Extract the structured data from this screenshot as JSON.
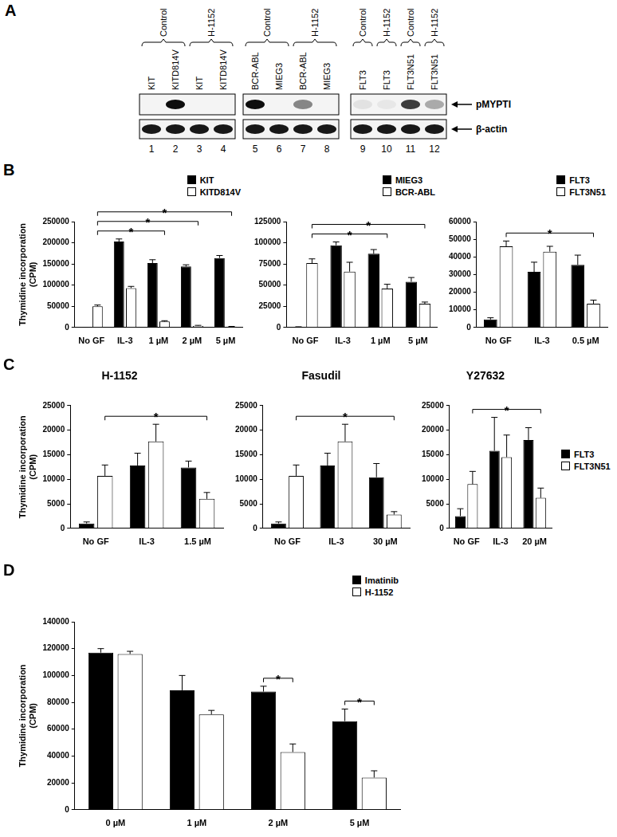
{
  "blot": {
    "panel": "A",
    "groups": [
      {
        "label": "Control",
        "lanes": [
          1,
          2
        ]
      },
      {
        "label": "H-1152",
        "lanes": [
          3,
          4
        ]
      },
      {
        "label": "Control",
        "lanes": [
          5,
          6
        ]
      },
      {
        "label": "H-1152",
        "lanes": [
          7,
          8
        ]
      },
      {
        "label": "Control",
        "lanes": [
          9
        ]
      },
      {
        "label": "H-1152",
        "lanes": [
          10
        ]
      },
      {
        "label": "Control",
        "lanes": [
          11
        ]
      },
      {
        "label": "H-1152",
        "lanes": [
          12
        ]
      }
    ],
    "lanes": [
      {
        "number": 1,
        "label": "KIT"
      },
      {
        "number": 2,
        "label": "KITD814V"
      },
      {
        "number": 3,
        "label": "KIT"
      },
      {
        "number": 4,
        "label": "KITD814V"
      },
      {
        "number": 5,
        "label": "BCR-ABL"
      },
      {
        "number": 6,
        "label": "MIEG3"
      },
      {
        "number": 7,
        "label": "BCR-ABL"
      },
      {
        "number": 8,
        "label": "MIEG3"
      },
      {
        "number": 9,
        "label": "FLT3"
      },
      {
        "number": 10,
        "label": "FLT3"
      },
      {
        "number": 11,
        "label": "FLT3N51"
      },
      {
        "number": 12,
        "label": "FLT3N51"
      }
    ],
    "boxes": [
      [
        1,
        4
      ],
      [
        5,
        8
      ],
      [
        9,
        12
      ]
    ],
    "rows": [
      {
        "label": "pMYPTI",
        "intensity": [
          0,
          0.95,
          0,
          0,
          0.95,
          0,
          0.45,
          0,
          0.07,
          0.05,
          0.75,
          0.3
        ]
      },
      {
        "label": "β-actin",
        "intensity": [
          0.9,
          0.9,
          0.9,
          0.9,
          0.9,
          0.9,
          0.9,
          0.9,
          0.9,
          0.9,
          0.9,
          0.9
        ]
      }
    ]
  },
  "chart_data": [
    {
      "panel": "B",
      "type": "bar",
      "y_label": "Thymidine incorporation (CPM)",
      "categories": [
        "No GF",
        "IL-3",
        "1 µM",
        "2 µM",
        "5 µM"
      ],
      "series": [
        {
          "name": "KIT",
          "color": "#000000",
          "values": [
            500,
            203000,
            152000,
            144000,
            164000
          ],
          "errors": [
            0,
            6000,
            8000,
            4000,
            6000
          ]
        },
        {
          "name": "KITD814V",
          "color": "#ffffff",
          "values": [
            50000,
            93000,
            14000,
            4000,
            2000
          ],
          "errors": [
            3000,
            4000,
            2000,
            1000,
            500
          ]
        }
      ],
      "ylim": [
        0,
        250000
      ],
      "yticks": [
        0,
        50000,
        100000,
        150000,
        200000,
        250000
      ],
      "grid": false,
      "legend": "top-right",
      "significance": [
        {
          "from": {
            "category": "No GF",
            "series": "KITD814V"
          },
          "to": {
            "category": "1 µM",
            "series": "KITD814V"
          },
          "label": "*"
        },
        {
          "from": {
            "category": "No GF",
            "series": "KITD814V"
          },
          "to": {
            "category": "2 µM",
            "series": "KITD814V"
          },
          "label": "*"
        },
        {
          "from": {
            "category": "No GF",
            "series": "KITD814V"
          },
          "to": {
            "category": "5 µM",
            "series": "KITD814V"
          },
          "label": "*"
        }
      ]
    },
    {
      "type": "bar",
      "categories": [
        "No GF",
        "IL-3",
        "1 µM",
        "5 µM"
      ],
      "series": [
        {
          "name": "MIEG3",
          "color": "#000000",
          "values": [
            500,
            97000,
            87000,
            54000
          ],
          "errors": [
            300,
            4000,
            5000,
            5000
          ]
        },
        {
          "name": "BCR-ABL",
          "color": "#ffffff",
          "values": [
            76000,
            66000,
            46000,
            28000
          ],
          "errors": [
            5000,
            11000,
            5000,
            2000
          ]
        }
      ],
      "ylim": [
        0,
        125000
      ],
      "yticks": [
        0,
        25000,
        50000,
        75000,
        100000,
        125000
      ],
      "grid": false,
      "legend": "top-right",
      "significance": [
        {
          "from": {
            "category": "No GF",
            "series": "BCR-ABL"
          },
          "to": {
            "category": "1 µM",
            "series": "BCR-ABL"
          },
          "label": "*"
        },
        {
          "from": {
            "category": "No GF",
            "series": "BCR-ABL"
          },
          "to": {
            "category": "5 µM",
            "series": "BCR-ABL"
          },
          "label": "*"
        }
      ]
    },
    {
      "type": "bar",
      "categories": [
        "No GF",
        "IL-3",
        "0.5 µM"
      ],
      "series": [
        {
          "name": "FLT3",
          "color": "#000000",
          "values": [
            4500,
            31500,
            35500
          ],
          "errors": [
            1000,
            5500,
            5500
          ]
        },
        {
          "name": "FLT3N51",
          "color": "#ffffff",
          "values": [
            46000,
            43000,
            13500
          ],
          "errors": [
            3000,
            3000,
            2000
          ]
        }
      ],
      "ylim": [
        0,
        60000
      ],
      "yticks": [
        0,
        10000,
        20000,
        30000,
        40000,
        50000,
        60000
      ],
      "grid": false,
      "legend": "top-right",
      "significance": [
        {
          "from": {
            "category": "No GF",
            "series": "FLT3N51"
          },
          "to": {
            "category": "0.5 µM",
            "series": "FLT3N51"
          },
          "label": "*"
        }
      ]
    },
    {
      "panel": "C",
      "type": "bar",
      "title": "H-1152",
      "y_label": "Thymidine incorporation (CPM)",
      "categories": [
        "No GF",
        "IL-3",
        "1.5 µM"
      ],
      "series": [
        {
          "name": "FLT3",
          "color": "#000000",
          "values": [
            1000,
            12800,
            12400
          ],
          "errors": [
            300,
            2500,
            1300
          ]
        },
        {
          "name": "FLT3N51",
          "color": "#ffffff",
          "values": [
            10700,
            17700,
            6000
          ],
          "errors": [
            2200,
            3500,
            1300
          ]
        }
      ],
      "ylim": [
        0,
        25000
      ],
      "yticks": [
        0,
        5000,
        10000,
        15000,
        20000,
        25000
      ],
      "grid": false,
      "significance": [
        {
          "from": {
            "category": "No GF",
            "series": "FLT3N51"
          },
          "to": {
            "category": "1.5 µM",
            "series": "FLT3N51"
          },
          "label": "*"
        }
      ]
    },
    {
      "type": "bar",
      "title": "Fasudil",
      "categories": [
        "No GF",
        "IL-3",
        "30 µM"
      ],
      "series": [
        {
          "name": "FLT3",
          "color": "#000000",
          "values": [
            1000,
            12800,
            10400
          ],
          "errors": [
            300,
            2500,
            2800
          ]
        },
        {
          "name": "FLT3N51",
          "color": "#ffffff",
          "values": [
            10700,
            17700,
            2800
          ],
          "errors": [
            2200,
            3500,
            600
          ]
        }
      ],
      "ylim": [
        0,
        25000
      ],
      "yticks": [
        0,
        5000,
        10000,
        15000,
        20000,
        25000
      ],
      "grid": false,
      "significance": [
        {
          "from": {
            "category": "No GF",
            "series": "FLT3N51"
          },
          "to": {
            "category": "30 µM",
            "series": "FLT3N51"
          },
          "label": "*"
        }
      ]
    },
    {
      "type": "bar",
      "title": "Y27632",
      "categories": [
        "No GF",
        "IL-3",
        "20 µM"
      ],
      "series": [
        {
          "name": "FLT3",
          "color": "#000000",
          "values": [
            2500,
            15800,
            18000
          ],
          "errors": [
            1500,
            6800,
            2500
          ]
        },
        {
          "name": "FLT3N51",
          "color": "#ffffff",
          "values": [
            9000,
            14500,
            6200
          ],
          "errors": [
            2600,
            4500,
            2000
          ]
        }
      ],
      "ylim": [
        0,
        25000
      ],
      "yticks": [
        0,
        5000,
        10000,
        15000,
        20000,
        25000
      ],
      "grid": false,
      "legend": "right",
      "significance": [
        {
          "from": {
            "category": "No GF",
            "series": "FLT3N51"
          },
          "to": {
            "category": "20 µM",
            "series": "FLT3N51"
          },
          "label": "*"
        }
      ]
    },
    {
      "panel": "D",
      "type": "bar",
      "y_label": "Thymidine incorporation (CPM)",
      "categories": [
        "0 µM",
        "1 µM",
        "2 µM",
        "5 µM"
      ],
      "series": [
        {
          "name": "Imatinib",
          "color": "#000000",
          "values": [
            117000,
            89000,
            88000,
            66000
          ],
          "errors": [
            3000,
            11000,
            4000,
            9000
          ]
        },
        {
          "name": "H-1152",
          "color": "#ffffff",
          "values": [
            116000,
            71000,
            43000,
            24000
          ],
          "errors": [
            2000,
            3000,
            6000,
            5000
          ]
        }
      ],
      "ylim": [
        0,
        140000
      ],
      "yticks": [
        0,
        20000,
        40000,
        60000,
        80000,
        100000,
        120000,
        140000
      ],
      "grid": false,
      "legend": "top-right",
      "significance": [
        {
          "from": {
            "category": "2 µM",
            "series": "Imatinib"
          },
          "to": {
            "category": "2 µM",
            "series": "H-1152"
          },
          "label": "*"
        },
        {
          "from": {
            "category": "5 µM",
            "series": "Imatinib"
          },
          "to": {
            "category": "5 µM",
            "series": "H-1152"
          },
          "label": "*"
        }
      ]
    }
  ]
}
